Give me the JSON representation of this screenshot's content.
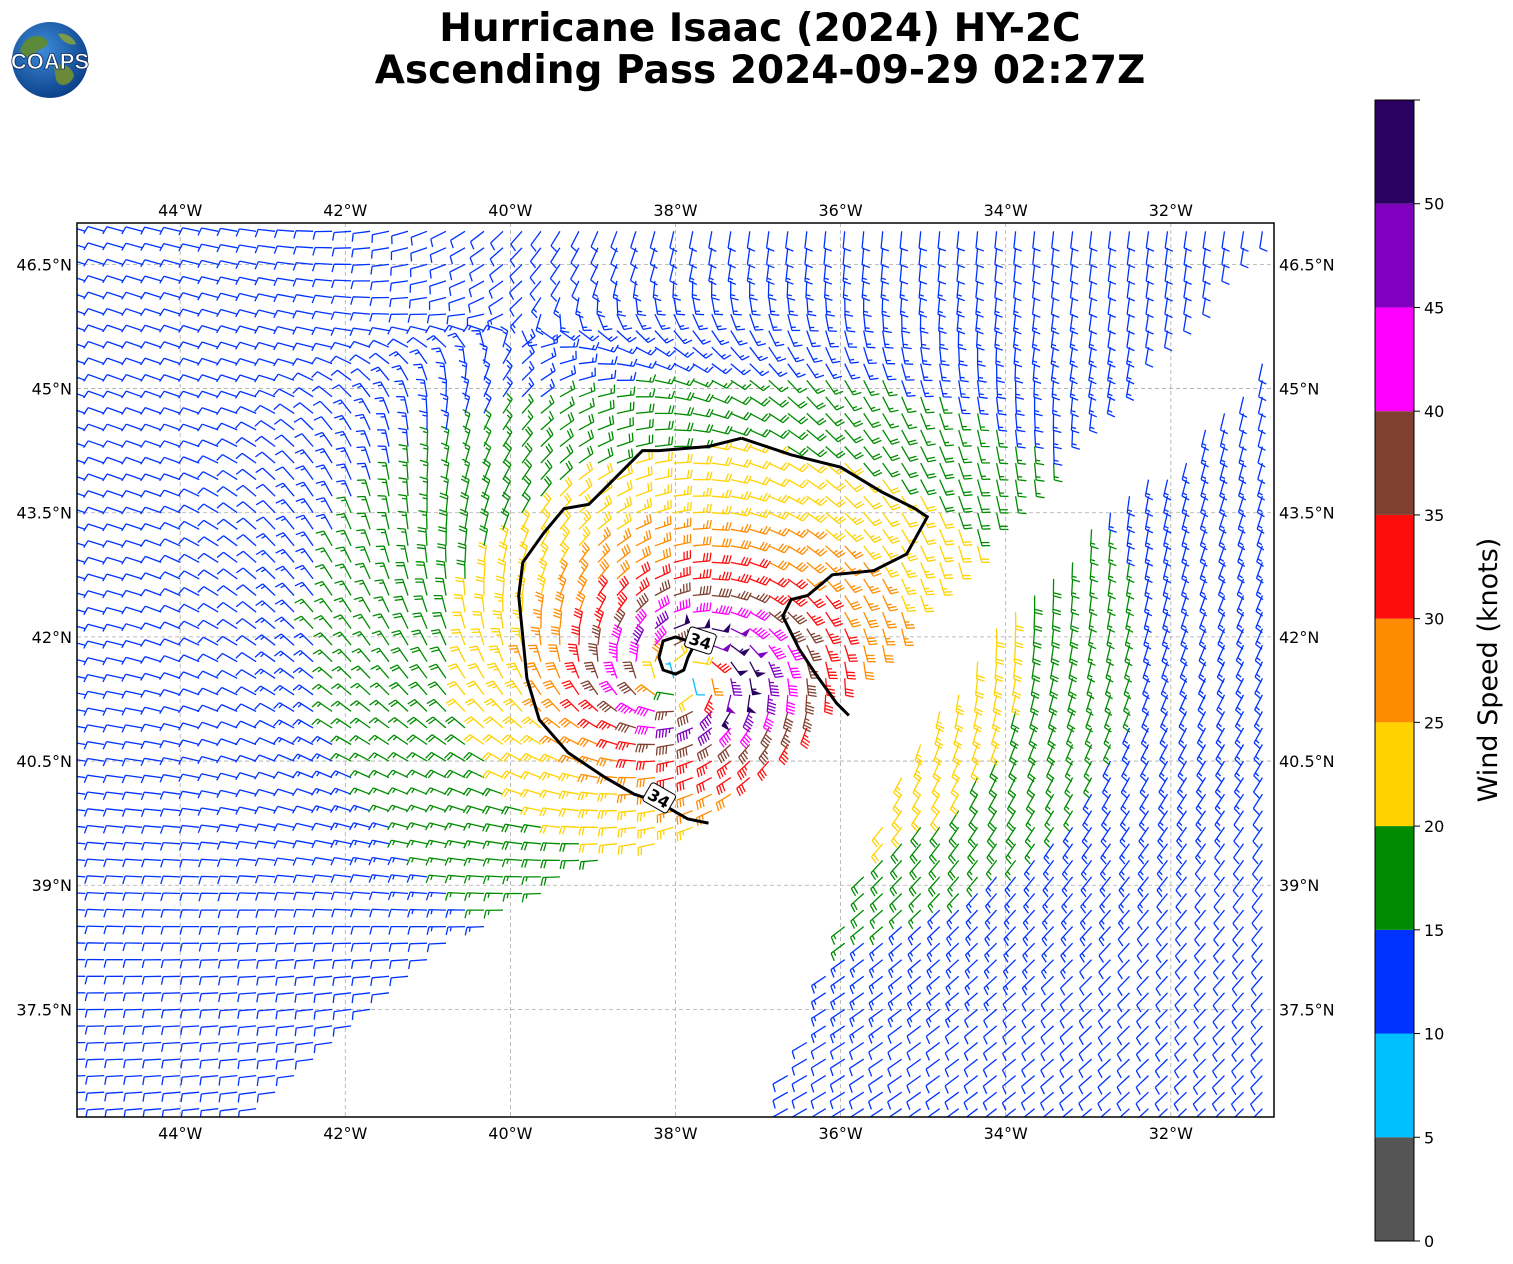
{
  "header": {
    "title_line1": "Hurricane Isaac (2024) HY-2C",
    "title_line2": "Ascending Pass 2024-09-29 02:27Z",
    "logo_text": "COAPS"
  },
  "map": {
    "lon_range": [
      -45.25,
      -30.75
    ],
    "lat_range": [
      36.2,
      47.0
    ],
    "lon_ticks": [
      {
        "value": -44,
        "label": "44°W"
      },
      {
        "value": -42,
        "label": "42°W"
      },
      {
        "value": -40,
        "label": "40°W"
      },
      {
        "value": -38,
        "label": "38°W"
      },
      {
        "value": -36,
        "label": "36°W"
      },
      {
        "value": -34,
        "label": "34°W"
      },
      {
        "value": -32,
        "label": "32°W"
      }
    ],
    "lat_ticks": [
      {
        "value": 46.5,
        "label": "46.5°N"
      },
      {
        "value": 45.0,
        "label": "45°N"
      },
      {
        "value": 43.5,
        "label": "43.5°N"
      },
      {
        "value": 42.0,
        "label": "42°N"
      },
      {
        "value": 40.5,
        "label": "40.5°N"
      },
      {
        "value": 39.0,
        "label": "39°N"
      },
      {
        "value": 37.5,
        "label": "37.5°N"
      }
    ],
    "grid": true,
    "storm_center": {
      "lon": -37.9,
      "lat": 41.5
    },
    "contour_34kt": {
      "label": "34",
      "outer": [
        [
          -37.2,
          44.4
        ],
        [
          -36.6,
          44.2
        ],
        [
          -36.0,
          44.05
        ],
        [
          -35.5,
          43.75
        ],
        [
          -35.1,
          43.55
        ],
        [
          -34.95,
          43.45
        ],
        [
          -35.2,
          43.0
        ],
        [
          -35.6,
          42.8
        ],
        [
          -36.1,
          42.75
        ],
        [
          -36.4,
          42.5
        ],
        [
          -36.6,
          42.45
        ],
        [
          -36.7,
          42.25
        ],
        [
          -36.5,
          41.85
        ],
        [
          -36.3,
          41.55
        ],
        [
          -36.05,
          41.2
        ],
        [
          -35.9,
          41.05
        ]
      ],
      "outer_south": [
        [
          -37.2,
          44.4
        ],
        [
          -37.6,
          44.3
        ],
        [
          -38.2,
          44.25
        ],
        [
          -38.4,
          44.25
        ],
        [
          -38.75,
          43.9
        ],
        [
          -39.05,
          43.6
        ],
        [
          -39.35,
          43.55
        ],
        [
          -39.6,
          43.25
        ],
        [
          -39.85,
          42.9
        ],
        [
          -39.9,
          42.5
        ],
        [
          -39.85,
          42.0
        ],
        [
          -39.8,
          41.5
        ],
        [
          -39.65,
          41.0
        ],
        [
          -39.3,
          40.6
        ],
        [
          -38.85,
          40.3
        ],
        [
          -38.5,
          40.1
        ],
        [
          -38.2,
          40.0
        ],
        [
          -37.85,
          39.8
        ],
        [
          -37.6,
          39.75
        ]
      ],
      "inner": [
        [
          -37.8,
          41.85
        ],
        [
          -37.85,
          41.75
        ],
        [
          -37.9,
          41.6
        ],
        [
          -38.0,
          41.55
        ],
        [
          -38.15,
          41.6
        ],
        [
          -38.2,
          41.75
        ],
        [
          -38.15,
          41.95
        ],
        [
          -38.0,
          42.0
        ],
        [
          -37.85,
          41.95
        ]
      ],
      "label_positions": [
        {
          "lon": -37.7,
          "lat": 41.95
        },
        {
          "lon": -38.2,
          "lat": 40.05
        }
      ]
    },
    "swaths": [
      {
        "name": "western",
        "polygon": [
          [
            -45.25,
            47.0
          ],
          [
            -30.75,
            47.0
          ],
          [
            -30.75,
            46.95
          ],
          [
            -36.0,
            41.3
          ],
          [
            -37.5,
            39.8
          ],
          [
            -39.0,
            39.2
          ],
          [
            -40.5,
            38.4
          ],
          [
            -42.0,
            37.2
          ],
          [
            -43.2,
            36.2
          ],
          [
            -45.25,
            36.2
          ]
        ]
      },
      {
        "name": "eastern",
        "polygon": [
          [
            -30.75,
            45.5
          ],
          [
            -31.8,
            44.3
          ],
          [
            -33.0,
            43.3
          ],
          [
            -34.3,
            41.9
          ],
          [
            -35.2,
            40.5
          ],
          [
            -35.8,
            39.0
          ],
          [
            -36.5,
            37.0
          ],
          [
            -36.9,
            36.2
          ],
          [
            -30.75,
            36.2
          ]
        ]
      }
    ]
  },
  "colorbar": {
    "label": "Wind Speed (knots)",
    "bins": [
      {
        "min": 0,
        "max": 5,
        "color": "#555555"
      },
      {
        "min": 5,
        "max": 10,
        "color": "#00bfff"
      },
      {
        "min": 10,
        "max": 15,
        "color": "#0033ff"
      },
      {
        "min": 15,
        "max": 20,
        "color": "#008c00"
      },
      {
        "min": 20,
        "max": 25,
        "color": "#ffd200"
      },
      {
        "min": 25,
        "max": 30,
        "color": "#ff8c00"
      },
      {
        "min": 30,
        "max": 35,
        "color": "#ff0d0d"
      },
      {
        "min": 35,
        "max": 40,
        "color": "#804030"
      },
      {
        "min": 40,
        "max": 45,
        "color": "#ff00ff"
      },
      {
        "min": 45,
        "max": 50,
        "color": "#8000c0"
      },
      {
        "min": 50,
        "max": 55,
        "color": "#2a0060"
      }
    ],
    "ticks": [
      "0",
      "5",
      "10",
      "15",
      "20",
      "25",
      "30",
      "35",
      "40",
      "45",
      "50"
    ]
  }
}
